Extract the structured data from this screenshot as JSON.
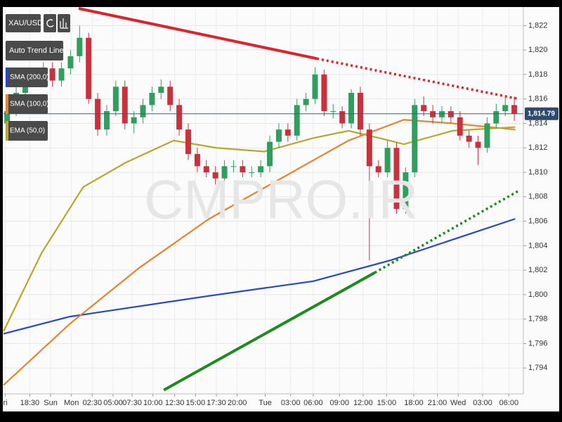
{
  "chart_data": {
    "type": "candlestick",
    "symbol": "XAU/USD",
    "toolbar": [
      "Auto Trend Lines"
    ],
    "watermark": "CMPRO.IR",
    "xlim": [
      -0.4,
      57
    ],
    "xticks": [
      {
        "value": -0.2,
        "label": "ri"
      },
      {
        "value": 2.5,
        "label": "18:30"
      },
      {
        "value": 4.8,
        "label": "Sun"
      },
      {
        "value": 7.1,
        "label": "Mon"
      },
      {
        "value": 9.4,
        "label": "02:30"
      },
      {
        "value": 11.7,
        "label": "05:00"
      },
      {
        "value": 13.8,
        "label": "07:30"
      },
      {
        "value": 16.1,
        "label": "10:00"
      },
      {
        "value": 18.5,
        "label": "12:30"
      },
      {
        "value": 20.8,
        "label": "15:00"
      },
      {
        "value": 23.1,
        "label": "17:30"
      },
      {
        "value": 25.4,
        "label": "20:00"
      },
      {
        "value": 28.5,
        "label": "Tue"
      },
      {
        "value": 31.3,
        "label": "03:00"
      },
      {
        "value": 33.8,
        "label": "06:00"
      },
      {
        "value": 36.7,
        "label": "09:00"
      },
      {
        "value": 39.3,
        "label": "12:00"
      },
      {
        "value": 41.9,
        "label": "15:00"
      },
      {
        "value": 44.9,
        "label": "18:00"
      },
      {
        "value": 47.5,
        "label": "21:00"
      },
      {
        "value": 49.8,
        "label": "Wed"
      },
      {
        "value": 52.5,
        "label": "03:00"
      },
      {
        "value": 55.4,
        "label": "06:00"
      }
    ],
    "ylim": [
      1791.6,
      1823.4
    ],
    "yticks": [
      {
        "value": 1794,
        "label": "1,794"
      },
      {
        "value": 1796,
        "label": "1,796"
      },
      {
        "value": 1798,
        "label": "1,798"
      },
      {
        "value": 1800,
        "label": "1,800"
      },
      {
        "value": 1802,
        "label": "1,802"
      },
      {
        "value": 1804,
        "label": "1,804"
      },
      {
        "value": 1806,
        "label": "1,806"
      },
      {
        "value": 1808,
        "label": "1,808"
      },
      {
        "value": 1810,
        "label": "1,810"
      },
      {
        "value": 1812,
        "label": "1,812"
      },
      {
        "value": 1814,
        "label": "1,814"
      },
      {
        "value": 1816,
        "label": "1,816"
      },
      {
        "value": 1818,
        "label": "1,818"
      },
      {
        "value": 1820,
        "label": "1,820"
      },
      {
        "value": 1822,
        "label": "1,822"
      }
    ],
    "grid": true,
    "up_color": "#2f9e5f",
    "down_color": "#c8323c",
    "candles": {
      "x": [
        0,
        1,
        2,
        3,
        4,
        5,
        6,
        7,
        8,
        9,
        10,
        11,
        12,
        13,
        14,
        15,
        16,
        17,
        18,
        19,
        20,
        21,
        22,
        23,
        24,
        25,
        26,
        27,
        28,
        29,
        30,
        31,
        32,
        33,
        34,
        35,
        36,
        37,
        38,
        39,
        40,
        41,
        42,
        43,
        44,
        45,
        46,
        47,
        48,
        49,
        50,
        51,
        52,
        53,
        54,
        55,
        56
      ],
      "open": [
        1814,
        1815,
        1816.5,
        1817.5,
        1818,
        1818.5,
        1817.5,
        1818.5,
        1819.5,
        1821,
        1816,
        1813.5,
        1815,
        1817,
        1814,
        1814.5,
        1815.5,
        1816.5,
        1817,
        1815.5,
        1813.5,
        1811.5,
        1810.5,
        1810,
        1809.5,
        1810.5,
        1810.5,
        1810,
        1810,
        1810.5,
        1812.5,
        1813.5,
        1813,
        1815.5,
        1816,
        1818,
        1815,
        1815,
        1814,
        1816.5,
        1813.5,
        1810.5,
        1810,
        1812,
        1807,
        1810,
        1815.5,
        1815,
        1814.5,
        1815,
        1814.5,
        1813,
        1812.5,
        1812,
        1814,
        1815,
        1815.5
      ],
      "high": [
        1815.6,
        1817,
        1818,
        1818.4,
        1819,
        1819,
        1819,
        1820,
        1822,
        1821.4,
        1816.5,
        1815.5,
        1817.5,
        1817.5,
        1815,
        1816,
        1817,
        1817.6,
        1817.5,
        1816,
        1814,
        1812,
        1811,
        1810.5,
        1811,
        1811,
        1811,
        1810.5,
        1811,
        1813,
        1814,
        1814,
        1816,
        1816.5,
        1818.6,
        1818.4,
        1815.6,
        1815.4,
        1816.8,
        1817,
        1814,
        1811,
        1812.6,
        1812.4,
        1810.4,
        1816,
        1816.2,
        1815.5,
        1815.4,
        1815.4,
        1815,
        1813.4,
        1813,
        1814.5,
        1815.6,
        1816.2,
        1816.2
      ],
      "low": [
        1813.4,
        1814.6,
        1816,
        1817,
        1817.6,
        1817,
        1817,
        1818,
        1819,
        1815.6,
        1813,
        1813,
        1814.6,
        1813.5,
        1813.2,
        1814,
        1815,
        1816,
        1815,
        1813,
        1811,
        1810,
        1809.6,
        1809,
        1809,
        1810,
        1809.6,
        1809.6,
        1809.6,
        1810,
        1812,
        1812.5,
        1812.6,
        1815,
        1815.6,
        1814.6,
        1814.4,
        1813.6,
        1813.6,
        1813,
        1802.8,
        1809.6,
        1809.6,
        1806.6,
        1806.6,
        1809.6,
        1814.6,
        1814,
        1814,
        1814,
        1812.6,
        1812,
        1810.6,
        1811.6,
        1813.6,
        1814.6,
        1814.2
      ],
      "close": [
        1815,
        1816.5,
        1817.5,
        1818,
        1818.5,
        1817.5,
        1818.5,
        1819.5,
        1821,
        1816,
        1813.5,
        1815,
        1817,
        1814,
        1814.5,
        1815.5,
        1816.5,
        1817,
        1815.5,
        1813.5,
        1811.5,
        1810.5,
        1810,
        1809.5,
        1810.5,
        1810.5,
        1810,
        1810,
        1810.5,
        1812.5,
        1813.5,
        1813,
        1815.5,
        1816,
        1818,
        1815,
        1815,
        1814,
        1816.5,
        1813.5,
        1810.5,
        1810,
        1812,
        1807,
        1810,
        1815.5,
        1815,
        1814.5,
        1815,
        1814.5,
        1813,
        1812.5,
        1812,
        1814,
        1815,
        1815.5,
        1814.8
      ]
    },
    "series": [
      {
        "name": "SMA (200,0)",
        "color": "#2546c8",
        "x": [
          -0.4,
          6.9,
          22.3,
          33.8,
          42.3,
          56.1
        ],
        "values": [
          1796.8,
          1798.2,
          1799.9,
          1801.1,
          1802.8,
          1806.2
        ]
      },
      {
        "name": "SMA (100,0)",
        "color": "#e8822c",
        "x": [
          -0.4,
          6.9,
          14.6,
          22.3,
          30,
          37.7,
          43.8,
          49.2,
          56.1
        ],
        "values": [
          1792.6,
          1797.6,
          1802.2,
          1806.2,
          1809.4,
          1812.6,
          1814.3,
          1814,
          1813.5
        ]
      },
      {
        "name": "EMA (50,0)",
        "color": "#b5a82a",
        "x": [
          -0.4,
          3.8,
          8.4,
          13.1,
          18.4,
          23.1,
          28.4,
          33.8,
          37.7,
          41.1,
          43.8,
          49.2,
          56.1
        ],
        "values": [
          1797,
          1803.4,
          1808.8,
          1810.8,
          1812.6,
          1812,
          1811.7,
          1812.8,
          1813.4,
          1812.8,
          1812.3,
          1813.4,
          1813.7
        ]
      }
    ],
    "trend_lines": [
      {
        "color": "#e0232a",
        "x": [
          7.9,
          34.2,
          56.5
        ],
        "values": [
          1823.4,
          1819.3,
          1816
        ]
      },
      {
        "color": "#1f8a1f",
        "x": [
          17.3,
          40.6,
          56.5
        ],
        "values": [
          1792.2,
          1801.8,
          1808.5
        ]
      }
    ],
    "last_price": {
      "value": 1814.79,
      "label": "1,814.79"
    }
  }
}
